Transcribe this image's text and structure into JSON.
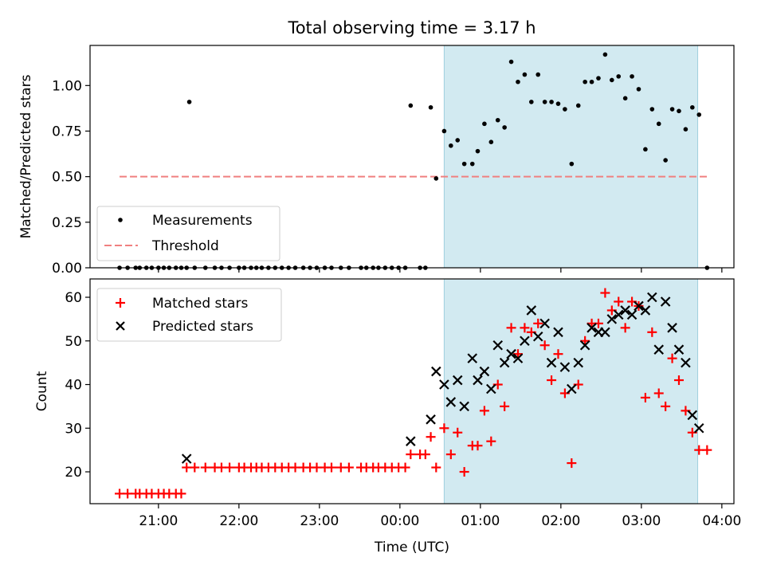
{
  "title": "Total observing time = 3.17 h",
  "chart_data": [
    {
      "type": "scatter",
      "ylabel": "Matched/Predicted stars",
      "ylim": [
        0,
        1.22
      ],
      "yticks": [
        "0.00",
        "0.25",
        "0.50",
        "0.75",
        "1.00"
      ],
      "xlim": [
        20.15,
        28.15
      ],
      "highlight_span": [
        "00:33",
        "03:42"
      ],
      "legend": {
        "position": "lower-left",
        "measurements": "Measurements",
        "threshold": "Threshold"
      },
      "threshold": {
        "value": 0.5,
        "x_range": [
          "20:31",
          "03:49"
        ],
        "color": "#f08080"
      },
      "series": [
        {
          "name": "Measurements",
          "points": [
            [
              "20:31",
              0
            ],
            [
              "20:37",
              0
            ],
            [
              "20:43",
              0
            ],
            [
              "20:46",
              0
            ],
            [
              "20:51",
              0
            ],
            [
              "20:55",
              0
            ],
            [
              "21:00",
              0
            ],
            [
              "21:04",
              0
            ],
            [
              "21:08",
              0
            ],
            [
              "21:13",
              0
            ],
            [
              "21:17",
              0
            ],
            [
              "21:21",
              0
            ],
            [
              "21:23",
              0.91
            ],
            [
              "21:27",
              0
            ],
            [
              "21:35",
              0
            ],
            [
              "21:42",
              0
            ],
            [
              "21:47",
              0
            ],
            [
              "21:53",
              0
            ],
            [
              "22:00",
              0
            ],
            [
              "22:04",
              0
            ],
            [
              "22:09",
              0
            ],
            [
              "22:13",
              0
            ],
            [
              "22:17",
              0
            ],
            [
              "22:22",
              0
            ],
            [
              "22:27",
              0
            ],
            [
              "22:32",
              0
            ],
            [
              "22:37",
              0
            ],
            [
              "22:42",
              0
            ],
            [
              "22:48",
              0
            ],
            [
              "22:53",
              0
            ],
            [
              "22:58",
              0
            ],
            [
              "23:04",
              0
            ],
            [
              "23:09",
              0
            ],
            [
              "23:16",
              0
            ],
            [
              "23:22",
              0
            ],
            [
              "23:31",
              0
            ],
            [
              "23:35",
              0
            ],
            [
              "23:40",
              0
            ],
            [
              "23:44",
              0
            ],
            [
              "23:49",
              0
            ],
            [
              "23:54",
              0
            ],
            [
              "23:59",
              0
            ],
            [
              "00:04",
              0
            ],
            [
              "00:08",
              0.89
            ],
            [
              "00:15",
              0
            ],
            [
              "00:19",
              0
            ],
            [
              "00:23",
              0.88
            ],
            [
              "00:27",
              0.49
            ],
            [
              "00:33",
              0.75
            ],
            [
              "00:38",
              0.67
            ],
            [
              "00:43",
              0.7
            ],
            [
              "00:48",
              0.57
            ],
            [
              "00:54",
              0.57
            ],
            [
              "00:58",
              0.64
            ],
            [
              "01:03",
              0.79
            ],
            [
              "01:08",
              0.69
            ],
            [
              "01:13",
              0.81
            ],
            [
              "01:18",
              0.77
            ],
            [
              "01:23",
              1.13
            ],
            [
              "01:28",
              1.02
            ],
            [
              "01:33",
              1.06
            ],
            [
              "01:38",
              0.91
            ],
            [
              "01:43",
              1.06
            ],
            [
              "01:48",
              0.91
            ],
            [
              "01:53",
              0.91
            ],
            [
              "01:58",
              0.9
            ],
            [
              "02:03",
              0.87
            ],
            [
              "02:08",
              0.57
            ],
            [
              "02:13",
              0.89
            ],
            [
              "02:18",
              1.02
            ],
            [
              "02:23",
              1.02
            ],
            [
              "02:28",
              1.04
            ],
            [
              "02:33",
              1.17
            ],
            [
              "02:38",
              1.03
            ],
            [
              "02:43",
              1.05
            ],
            [
              "02:48",
              0.93
            ],
            [
              "02:53",
              1.05
            ],
            [
              "02:58",
              0.98
            ],
            [
              "03:03",
              0.65
            ],
            [
              "03:08",
              0.87
            ],
            [
              "03:13",
              0.79
            ],
            [
              "03:18",
              0.59
            ],
            [
              "03:23",
              0.87
            ],
            [
              "03:28",
              0.86
            ],
            [
              "03:33",
              0.76
            ],
            [
              "03:38",
              0.88
            ],
            [
              "03:43",
              0.84
            ],
            [
              "03:49",
              0
            ]
          ]
        }
      ]
    },
    {
      "type": "scatter",
      "xlabel": "Time (UTC)",
      "ylabel": "Count",
      "ylim": [
        12.7,
        64.2
      ],
      "yticks": [
        "20",
        "30",
        "40",
        "50",
        "60"
      ],
      "xlim": [
        20.15,
        28.15
      ],
      "xticks": [
        "21:00",
        "22:00",
        "23:00",
        "00:00",
        "01:00",
        "02:00",
        "03:00",
        "04:00"
      ],
      "highlight_span": [
        "00:33",
        "03:42"
      ],
      "legend": {
        "position": "top-left",
        "matched": "Matched stars",
        "predicted": "Predicted stars"
      },
      "series": [
        {
          "name": "Matched stars",
          "color": "#ff0000",
          "points": [
            [
              "20:31",
              15
            ],
            [
              "20:37",
              15
            ],
            [
              "20:43",
              15
            ],
            [
              "20:46",
              15
            ],
            [
              "20:51",
              15
            ],
            [
              "20:55",
              15
            ],
            [
              "21:00",
              15
            ],
            [
              "21:04",
              15
            ],
            [
              "21:08",
              15
            ],
            [
              "21:13",
              15
            ],
            [
              "21:17",
              15
            ],
            [
              "21:21",
              21
            ],
            [
              "21:27",
              21
            ],
            [
              "21:35",
              21
            ],
            [
              "21:42",
              21
            ],
            [
              "21:47",
              21
            ],
            [
              "21:53",
              21
            ],
            [
              "22:00",
              21
            ],
            [
              "22:04",
              21
            ],
            [
              "22:09",
              21
            ],
            [
              "22:13",
              21
            ],
            [
              "22:17",
              21
            ],
            [
              "22:22",
              21
            ],
            [
              "22:27",
              21
            ],
            [
              "22:32",
              21
            ],
            [
              "22:37",
              21
            ],
            [
              "22:42",
              21
            ],
            [
              "22:48",
              21
            ],
            [
              "22:53",
              21
            ],
            [
              "22:58",
              21
            ],
            [
              "23:04",
              21
            ],
            [
              "23:09",
              21
            ],
            [
              "23:16",
              21
            ],
            [
              "23:22",
              21
            ],
            [
              "23:31",
              21
            ],
            [
              "23:35",
              21
            ],
            [
              "23:40",
              21
            ],
            [
              "23:44",
              21
            ],
            [
              "23:49",
              21
            ],
            [
              "23:54",
              21
            ],
            [
              "23:59",
              21
            ],
            [
              "00:04",
              21
            ],
            [
              "00:08",
              24
            ],
            [
              "00:15",
              24
            ],
            [
              "00:19",
              24
            ],
            [
              "00:23",
              28
            ],
            [
              "00:27",
              21
            ],
            [
              "00:33",
              30
            ],
            [
              "00:38",
              24
            ],
            [
              "00:43",
              29
            ],
            [
              "00:48",
              20
            ],
            [
              "00:54",
              26
            ],
            [
              "00:58",
              26
            ],
            [
              "01:03",
              34
            ],
            [
              "01:08",
              27
            ],
            [
              "01:13",
              40
            ],
            [
              "01:18",
              35
            ],
            [
              "01:23",
              53
            ],
            [
              "01:28",
              47
            ],
            [
              "01:33",
              53
            ],
            [
              "01:38",
              52
            ],
            [
              "01:43",
              54
            ],
            [
              "01:48",
              49
            ],
            [
              "01:53",
              41
            ],
            [
              "01:58",
              47
            ],
            [
              "02:03",
              38
            ],
            [
              "02:08",
              22
            ],
            [
              "02:13",
              40
            ],
            [
              "02:18",
              50
            ],
            [
              "02:23",
              54
            ],
            [
              "02:28",
              54
            ],
            [
              "02:33",
              61
            ],
            [
              "02:38",
              57
            ],
            [
              "02:43",
              59
            ],
            [
              "02:48",
              53
            ],
            [
              "02:53",
              59
            ],
            [
              "02:58",
              58
            ],
            [
              "03:03",
              37
            ],
            [
              "03:08",
              52
            ],
            [
              "03:13",
              38
            ],
            [
              "03:18",
              35
            ],
            [
              "03:23",
              46
            ],
            [
              "03:28",
              41
            ],
            [
              "03:33",
              34
            ],
            [
              "03:38",
              29
            ],
            [
              "03:43",
              25
            ],
            [
              "03:49",
              25
            ]
          ]
        },
        {
          "name": "Predicted stars",
          "color": "#000000",
          "points": [
            [
              "21:21",
              23
            ],
            [
              "00:08",
              27
            ],
            [
              "00:23",
              32
            ],
            [
              "00:27",
              43
            ],
            [
              "00:33",
              40
            ],
            [
              "00:38",
              36
            ],
            [
              "00:43",
              41
            ],
            [
              "00:48",
              35
            ],
            [
              "00:54",
              46
            ],
            [
              "00:58",
              41
            ],
            [
              "01:03",
              43
            ],
            [
              "01:08",
              39
            ],
            [
              "01:13",
              49
            ],
            [
              "01:18",
              45
            ],
            [
              "01:23",
              47
            ],
            [
              "01:28",
              46
            ],
            [
              "01:33",
              50
            ],
            [
              "01:38",
              57
            ],
            [
              "01:43",
              51
            ],
            [
              "01:48",
              54
            ],
            [
              "01:53",
              45
            ],
            [
              "01:58",
              52
            ],
            [
              "02:03",
              44
            ],
            [
              "02:08",
              39
            ],
            [
              "02:13",
              45
            ],
            [
              "02:18",
              49
            ],
            [
              "02:23",
              53
            ],
            [
              "02:28",
              52
            ],
            [
              "02:33",
              52
            ],
            [
              "02:38",
              55
            ],
            [
              "02:43",
              56
            ],
            [
              "02:48",
              57
            ],
            [
              "02:53",
              56
            ],
            [
              "02:58",
              58
            ],
            [
              "03:03",
              57
            ],
            [
              "03:08",
              60
            ],
            [
              "03:13",
              48
            ],
            [
              "03:18",
              59
            ],
            [
              "03:23",
              53
            ],
            [
              "03:28",
              48
            ],
            [
              "03:33",
              45
            ],
            [
              "03:38",
              33
            ],
            [
              "03:43",
              30
            ]
          ]
        }
      ]
    }
  ]
}
